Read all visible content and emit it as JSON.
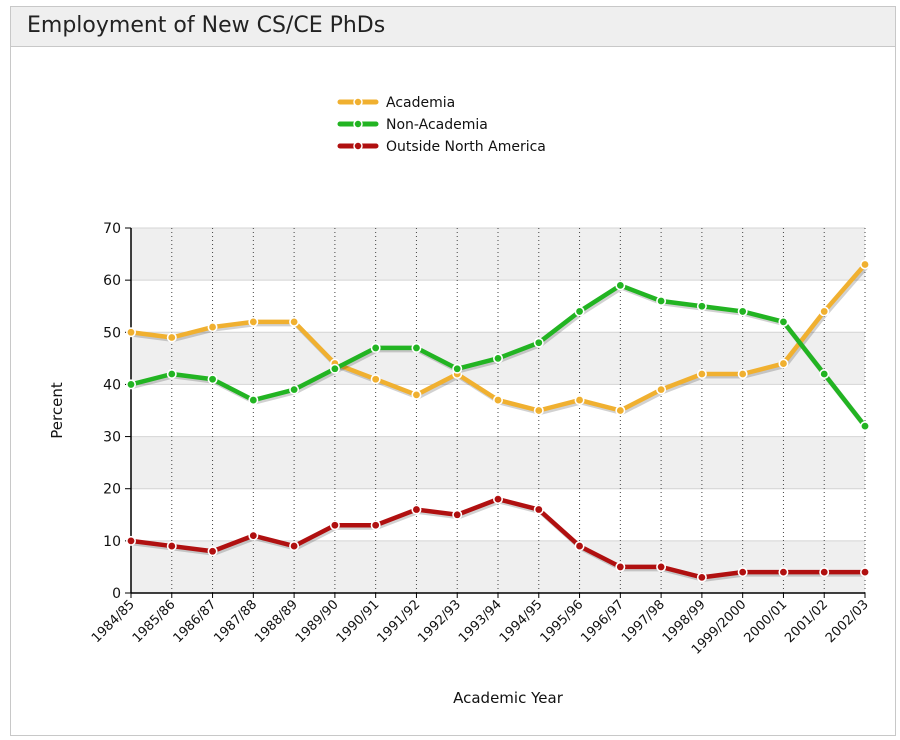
{
  "chart_data": {
    "type": "line",
    "title": "Employment of New CS/CE PhDs",
    "xlabel": "Academic Year",
    "ylabel": "Percent",
    "ylim": [
      0,
      70
    ],
    "yticks": [
      0,
      10,
      20,
      30,
      40,
      50,
      60,
      70
    ],
    "grid": "horizontal alternating bands with dotted vertical lines",
    "legend": "top-center",
    "categories": [
      "1984/85",
      "1985/86",
      "1986/87",
      "1987/88",
      "1988/89",
      "1989/90",
      "1990/91",
      "1991/92",
      "1992/93",
      "1993/94",
      "1994/95",
      "1995/96",
      "1996/97",
      "1997/98",
      "1998/99",
      "1999/2000",
      "2000/01",
      "2001/02",
      "2002/03"
    ],
    "series": [
      {
        "name": "Academia",
        "color": "#f0b030",
        "values": [
          50,
          49,
          51,
          52,
          52,
          44,
          41,
          38,
          42,
          37,
          35,
          37,
          35,
          39,
          42,
          42,
          44,
          54,
          63
        ]
      },
      {
        "name": "Non-Academia",
        "color": "#22b422",
        "values": [
          40,
          42,
          41,
          37,
          39,
          43,
          47,
          47,
          43,
          45,
          48,
          54,
          59,
          56,
          55,
          54,
          52,
          42,
          32
        ]
      },
      {
        "name": "Outside North America",
        "color": "#b01010",
        "values": [
          10,
          9,
          8,
          11,
          9,
          13,
          13,
          16,
          15,
          18,
          16,
          9,
          5,
          5,
          3,
          4,
          4,
          4,
          4
        ]
      }
    ]
  }
}
